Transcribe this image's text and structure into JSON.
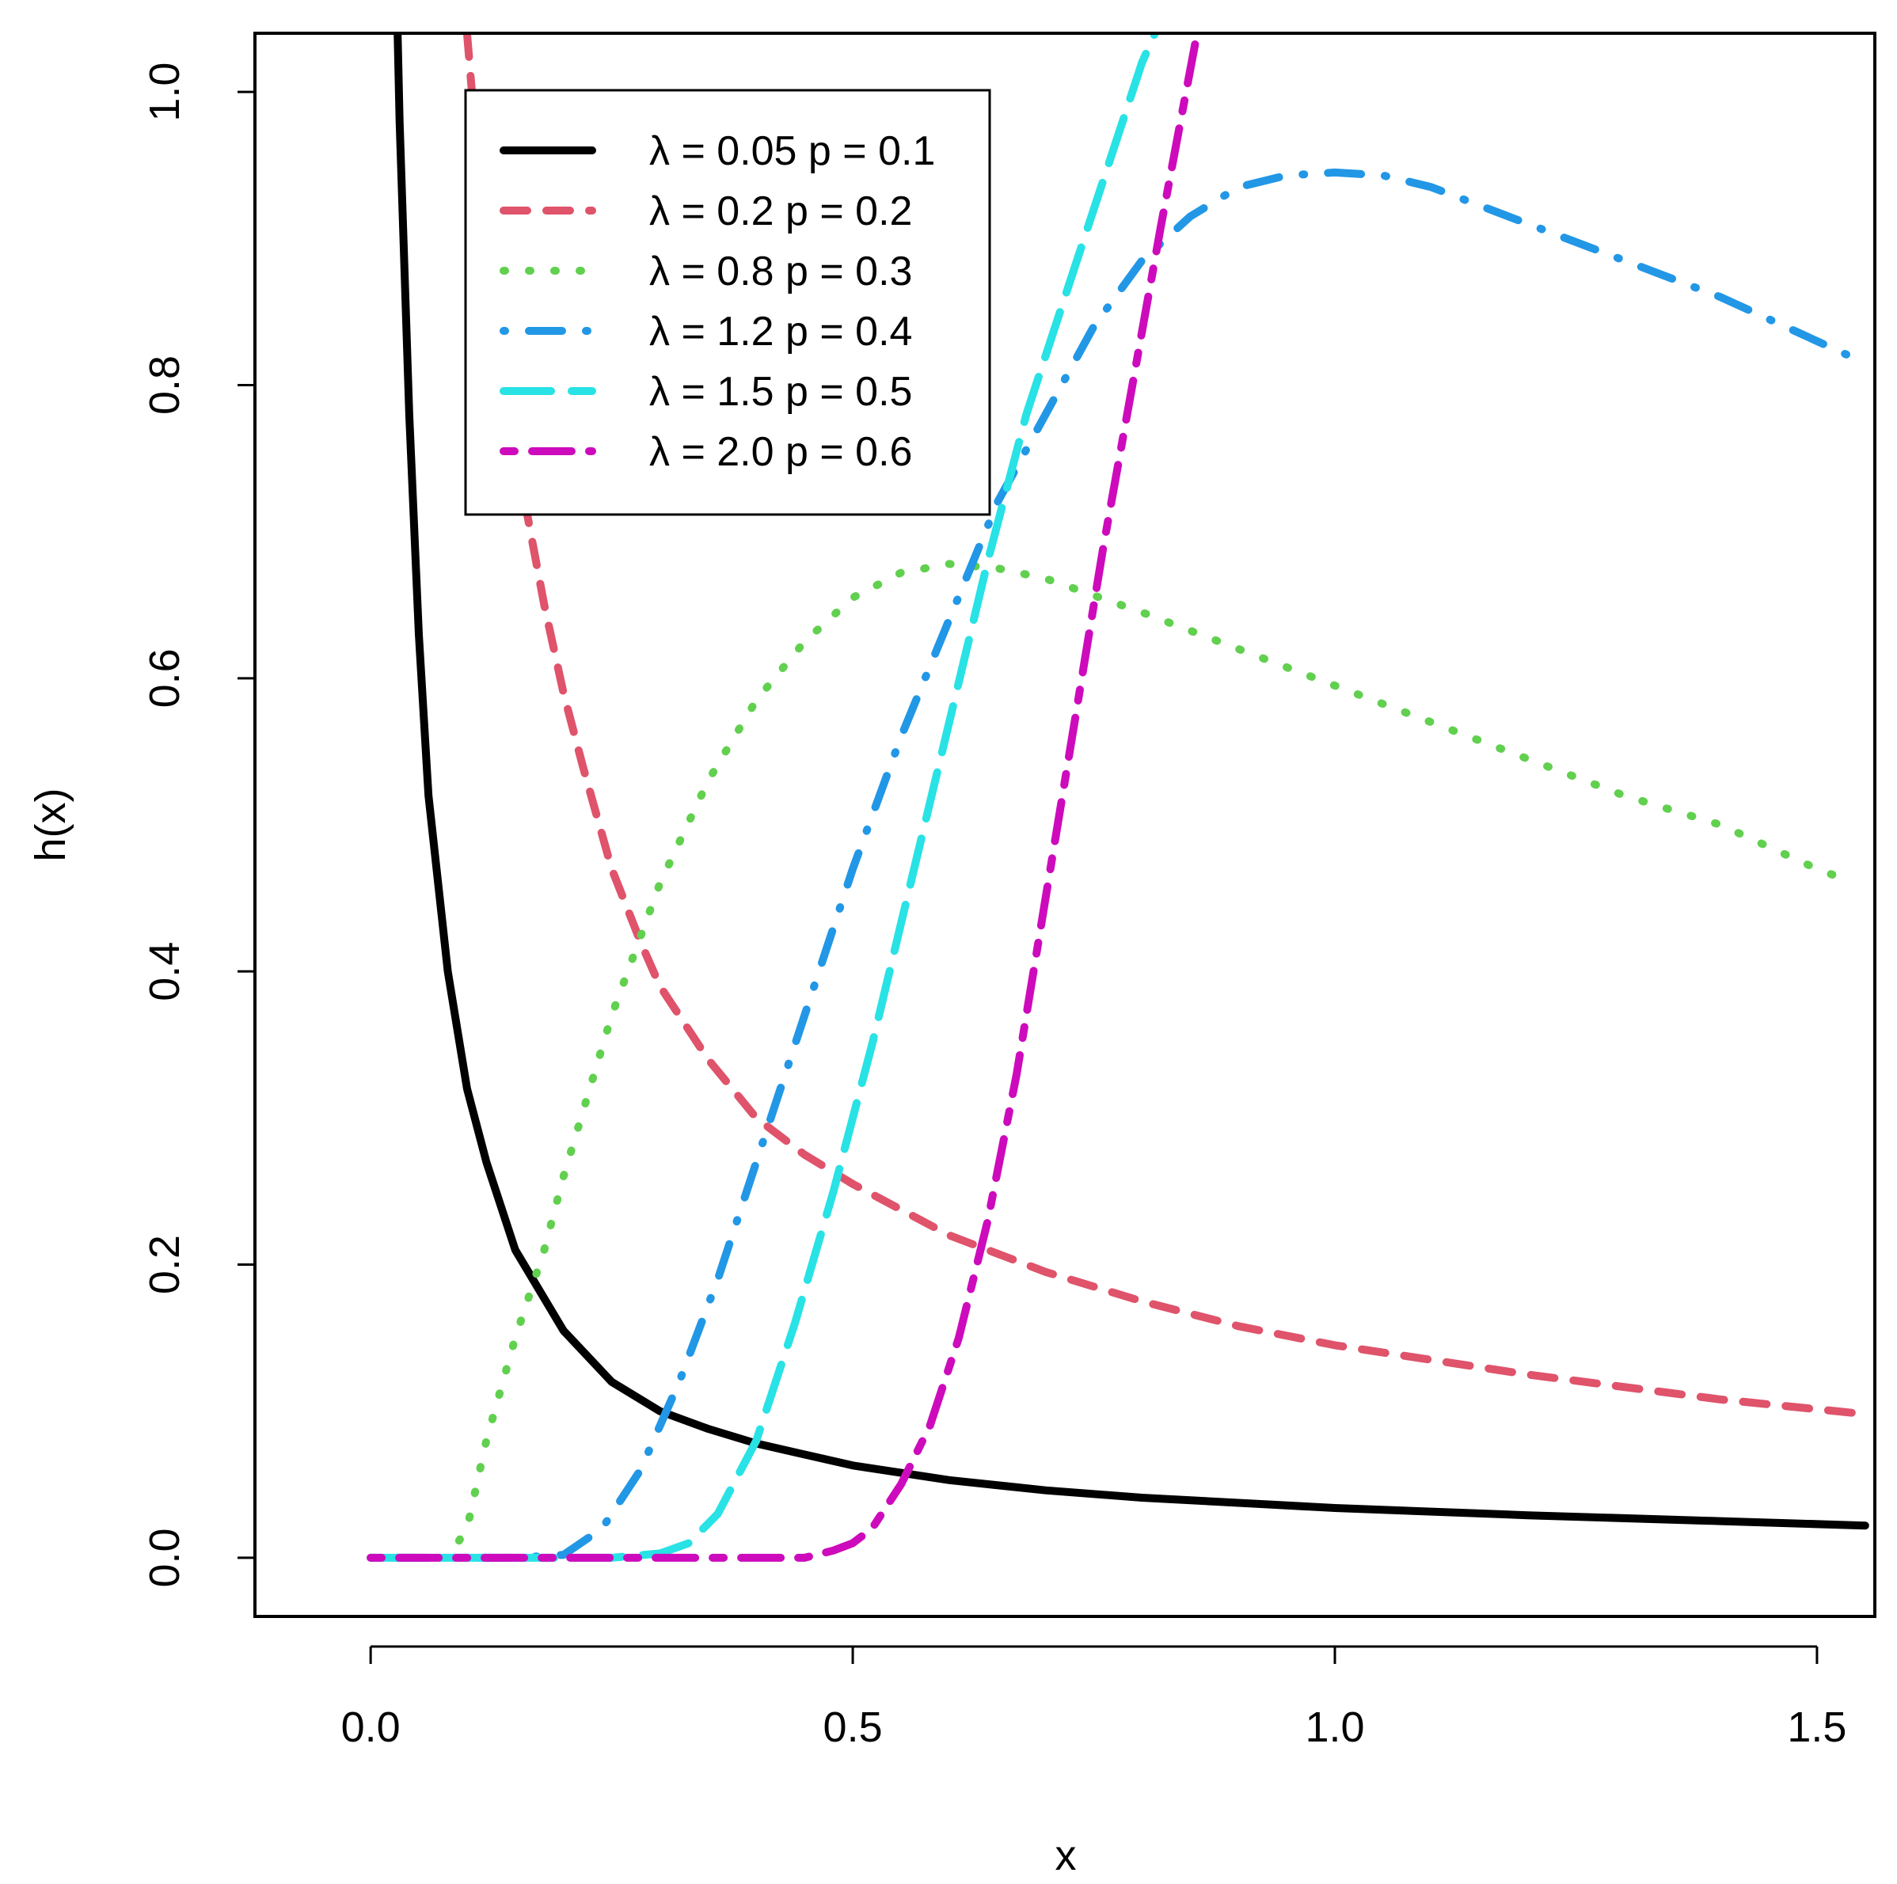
{
  "chart_data": {
    "type": "line",
    "title": "",
    "xlabel": "x",
    "ylabel": "h(x)",
    "xlim": [
      -0.12,
      1.56
    ],
    "ylim": [
      -0.04,
      1.04
    ],
    "xticks": [
      0.0,
      0.5,
      1.0,
      1.5
    ],
    "xtick_labels": [
      "0.0",
      "0.5",
      "1.0",
      "1.5"
    ],
    "yticks": [
      0.0,
      0.2,
      0.4,
      0.6,
      0.8,
      1.0
    ],
    "ytick_labels": [
      "0.0",
      "0.2",
      "0.4",
      "0.6",
      "0.8",
      "1.0"
    ],
    "grid": false,
    "legend_position": "top-left",
    "series": [
      {
        "name": "λ = 0.05  p = 0.1",
        "legend_lambda": "0.05",
        "legend_p": "0.1",
        "color": "#000000",
        "dash": "solid",
        "x": [
          0.028,
          0.03,
          0.04,
          0.05,
          0.06,
          0.08,
          0.1,
          0.12,
          0.15,
          0.2,
          0.25,
          0.3,
          0.35,
          0.4,
          0.5,
          0.6,
          0.7,
          0.8,
          1.0,
          1.2,
          1.4,
          1.55
        ],
        "y": [
          1.04,
          0.98,
          0.78,
          0.63,
          0.52,
          0.4,
          0.32,
          0.27,
          0.21,
          0.155,
          0.12,
          0.1,
          0.088,
          0.078,
          0.063,
          0.053,
          0.046,
          0.041,
          0.034,
          0.029,
          0.025,
          0.022
        ]
      },
      {
        "name": "λ = 0.2  p = 0.2",
        "legend_lambda": "0.2",
        "legend_p": "0.2",
        "color": "#df536b",
        "dash": "dashed",
        "x": [
          0.1,
          0.11,
          0.12,
          0.14,
          0.16,
          0.18,
          0.2,
          0.22,
          0.25,
          0.28,
          0.3,
          0.35,
          0.4,
          0.45,
          0.5,
          0.6,
          0.7,
          0.8,
          0.9,
          1.0,
          1.2,
          1.4,
          1.55
        ],
        "y": [
          1.04,
          0.96,
          0.9,
          0.81,
          0.72,
          0.65,
          0.59,
          0.54,
          0.47,
          0.42,
          0.39,
          0.34,
          0.3,
          0.275,
          0.255,
          0.22,
          0.195,
          0.175,
          0.158,
          0.145,
          0.125,
          0.108,
          0.098
        ]
      },
      {
        "name": "λ = 0.8  p = 0.3",
        "legend_lambda": "0.8",
        "legend_p": "0.3",
        "color": "#61d04f",
        "dash": "dotted",
        "x": [
          0.075,
          0.08,
          0.1,
          0.12,
          0.15,
          0.18,
          0.2,
          0.25,
          0.3,
          0.35,
          0.4,
          0.45,
          0.5,
          0.55,
          0.6,
          0.65,
          0.7,
          0.8,
          0.9,
          1.0,
          1.1,
          1.2,
          1.3,
          1.4,
          1.5,
          1.52
        ],
        "y": [
          0.0,
          0.0,
          0.02,
          0.08,
          0.15,
          0.21,
          0.26,
          0.37,
          0.46,
          0.53,
          0.585,
          0.625,
          0.655,
          0.672,
          0.678,
          0.675,
          0.668,
          0.645,
          0.62,
          0.595,
          0.57,
          0.545,
          0.52,
          0.5,
          0.47,
          0.465
        ]
      },
      {
        "name": "λ = 1.2  p = 0.4",
        "legend_lambda": "1.2",
        "legend_p": "0.4",
        "color": "#2297e6",
        "dash": "dotdash",
        "x": [
          0.0,
          0.15,
          0.2,
          0.24,
          0.28,
          0.32,
          0.36,
          0.4,
          0.45,
          0.5,
          0.55,
          0.6,
          0.65,
          0.7,
          0.75,
          0.8,
          0.85,
          0.9,
          0.95,
          1.0,
          1.05,
          1.1,
          1.2,
          1.3,
          1.4,
          1.5,
          1.55
        ],
        "y": [
          0.0,
          0.0,
          0.002,
          0.02,
          0.06,
          0.12,
          0.19,
          0.27,
          0.37,
          0.47,
          0.56,
          0.64,
          0.72,
          0.78,
          0.84,
          0.885,
          0.915,
          0.935,
          0.943,
          0.945,
          0.943,
          0.935,
          0.91,
          0.885,
          0.86,
          0.83,
          0.815
        ]
      },
      {
        "name": "λ = 1.5  p = 0.5",
        "legend_lambda": "1.5",
        "legend_p": "0.5",
        "color": "#28e2e5",
        "dash": "longdash",
        "x": [
          0.0,
          0.25,
          0.3,
          0.33,
          0.36,
          0.4,
          0.44,
          0.48,
          0.52,
          0.56,
          0.6,
          0.64,
          0.68,
          0.72,
          0.76,
          0.8,
          0.82
        ],
        "y": [
          0.0,
          0.0,
          0.003,
          0.01,
          0.03,
          0.08,
          0.16,
          0.25,
          0.35,
          0.46,
          0.57,
          0.68,
          0.78,
          0.86,
          0.94,
          1.02,
          1.05
        ]
      },
      {
        "name": "λ = 2.0  p = 0.6",
        "legend_lambda": "2.0",
        "legend_p": "0.6",
        "color": "#cd0bbc",
        "dash": "twodash",
        "x": [
          0.0,
          0.45,
          0.48,
          0.5,
          0.52,
          0.55,
          0.58,
          0.61,
          0.64,
          0.67,
          0.7,
          0.73,
          0.76,
          0.79,
          0.82,
          0.84,
          0.86
        ],
        "y": [
          0.0,
          0.0,
          0.005,
          0.01,
          0.02,
          0.05,
          0.09,
          0.15,
          0.23,
          0.33,
          0.45,
          0.57,
          0.69,
          0.8,
          0.91,
          0.98,
          1.05
        ]
      }
    ]
  }
}
